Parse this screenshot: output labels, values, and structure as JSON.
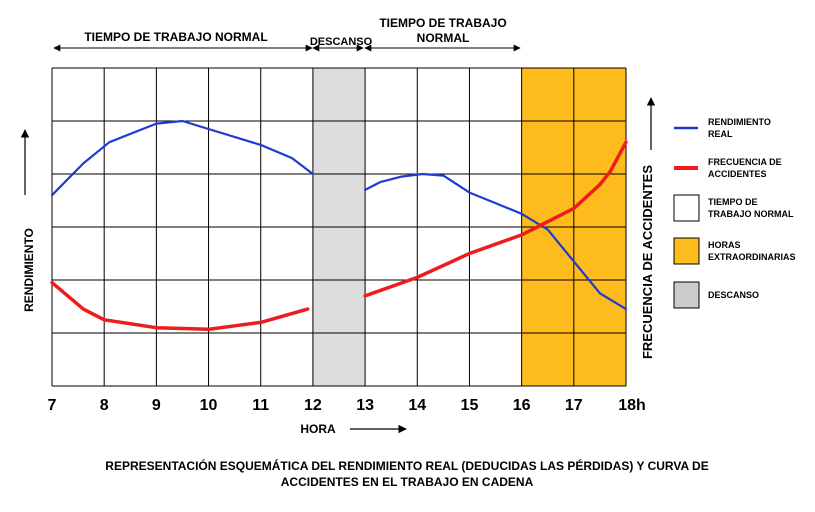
{
  "chart_data": {
    "type": "line",
    "x_ticks": [
      "7",
      "8",
      "9",
      "10",
      "11",
      "12",
      "13",
      "14",
      "15",
      "16",
      "17",
      "18h"
    ],
    "xlabel": "HORA",
    "ylabel_left": "RENDIMIENTO",
    "ylabel_right": "FRECUENCIA DE ACCIDENTES",
    "xlim": [
      7,
      18
    ],
    "grid": true,
    "periods": [
      {
        "label": "TIEMPO DE TRABAJO NORMAL",
        "start": 7,
        "end": 12
      },
      {
        "label": "DESCANSO",
        "start": 12,
        "end": 13
      },
      {
        "label_line1": "TIEMPO DE TRABAJO",
        "label_line2": "NORMAL",
        "start": 13,
        "end": 16
      }
    ],
    "shaded_regions": [
      {
        "name": "descanso",
        "start": 12,
        "end": 13,
        "color": "#dddddd"
      },
      {
        "name": "horas-extraordinarias",
        "start": 16,
        "end": 18,
        "color": "#fdbb1d"
      }
    ],
    "series": [
      {
        "name_line1": "RENDIMIENTO",
        "name_line2": "REAL",
        "color": "#1f3bd1",
        "segments": [
          [
            [
              7,
              3.6
            ],
            [
              7.6,
              4.2
            ],
            [
              8.1,
              4.6
            ],
            [
              9,
              4.95
            ],
            [
              9.5,
              5.0
            ],
            [
              10,
              4.85
            ],
            [
              11,
              4.55
            ],
            [
              11.6,
              4.3
            ],
            [
              12,
              4.0
            ]
          ],
          [
            [
              13,
              3.7
            ],
            [
              13.3,
              3.85
            ],
            [
              13.7,
              3.95
            ],
            [
              14.1,
              4.0
            ],
            [
              14.5,
              3.97
            ],
            [
              15,
              3.65
            ],
            [
              15.5,
              3.45
            ],
            [
              16,
              3.25
            ],
            [
              16.5,
              2.95
            ],
            [
              17,
              2.35
            ],
            [
              17.5,
              1.75
            ],
            [
              18,
              1.45
            ]
          ]
        ]
      },
      {
        "name_line1": "FRECUENCIA DE",
        "name_line2": "ACCIDENTES",
        "color": "#ee1c1c",
        "segments": [
          [
            [
              7,
              1.95
            ],
            [
              7.6,
              1.45
            ],
            [
              8,
              1.25
            ],
            [
              9,
              1.1
            ],
            [
              10,
              1.07
            ],
            [
              11,
              1.2
            ],
            [
              11.9,
              1.45
            ]
          ],
          [
            [
              13,
              1.7
            ],
            [
              14,
              2.05
            ],
            [
              15,
              2.5
            ],
            [
              16,
              2.85
            ],
            [
              16.5,
              3.1
            ],
            [
              17,
              3.35
            ],
            [
              17.5,
              3.8
            ],
            [
              17.7,
              4.05
            ],
            [
              18,
              4.6
            ]
          ]
        ]
      }
    ],
    "legend": [
      {
        "key": "rendimiento",
        "type": "line",
        "color": "#1f3bd1",
        "line1": "RENDIMIENTO",
        "line2": "REAL"
      },
      {
        "key": "frecuencia",
        "type": "line",
        "color": "#ee1c1c",
        "line1": "FRECUENCIA DE",
        "line2": "ACCIDENTES"
      },
      {
        "key": "normal",
        "type": "box",
        "color": "#ffffff",
        "line1": "TIEMPO DE",
        "line2": "TRABAJO NORMAL"
      },
      {
        "key": "extra",
        "type": "box",
        "color": "#fdbb1d",
        "line1": "HORAS",
        "line2": "EXTRAORDINARIAS"
      },
      {
        "key": "descanso",
        "type": "box",
        "color": "#cccccc",
        "line1": "DESCANSO",
        "line2": ""
      }
    ],
    "caption_line1": "REPRESENTACIÓN ESQUEMÁTICA DEL RENDIMIENTO REAL (DEDUCIDAS LAS PÉRDIDAS) Y CURVA DE",
    "caption_line2": "ACCIDENTES EN EL TRABAJO EN CADENA"
  }
}
